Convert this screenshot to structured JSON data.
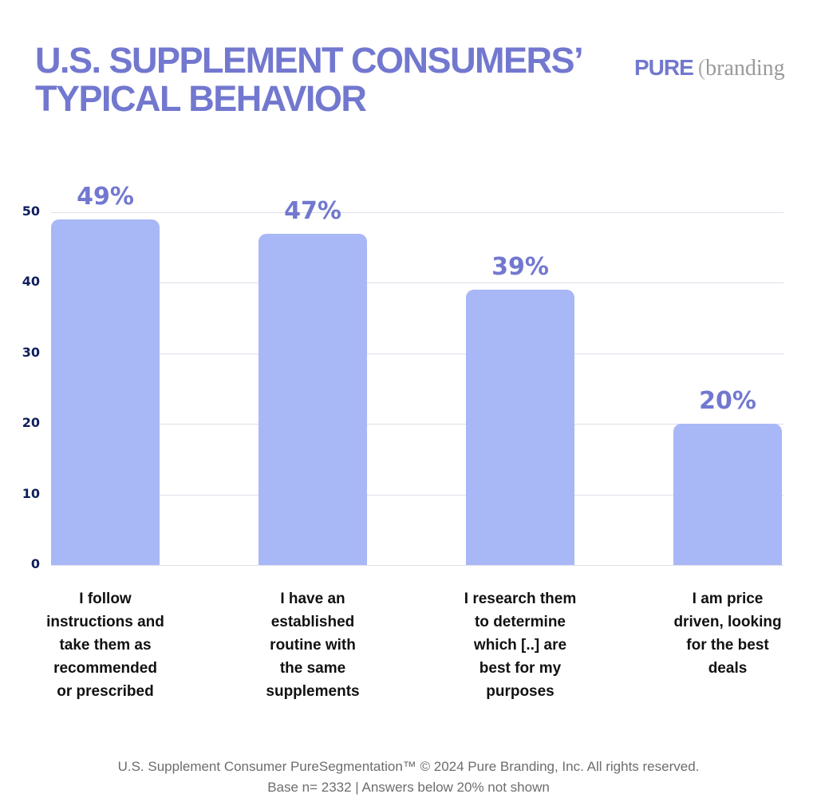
{
  "header": {
    "title_line1": "U.S. SUPPLEMENT CONSUMERS’",
    "title_line2": "TYPICAL BEHAVIOR",
    "logo_pure": "PURE",
    "logo_paren": "(",
    "logo_branding": "branding"
  },
  "footer": {
    "line1": "U.S. Supplement Consumer PureSegmentation™ © 2024 Pure Branding, Inc. All rights reserved.",
    "line2": "Base n= 2332 | Answers below 20% not shown"
  },
  "colors": {
    "accent": "#7278cf",
    "bar": "#a8b7f6",
    "axis_text": "#0f1f5c",
    "grid": "#dcdfe8"
  },
  "chart_data": {
    "type": "bar",
    "title": "U.S. SUPPLEMENT CONSUMERS’ TYPICAL BEHAVIOR",
    "xlabel": "",
    "ylabel": "",
    "ylim": [
      0,
      50
    ],
    "yticks": [
      0,
      10,
      20,
      30,
      40,
      50
    ],
    "ytick_labels": [
      "0",
      "10",
      "20",
      "30",
      "40",
      "50"
    ],
    "grid": true,
    "legend": null,
    "categories": [
      "I follow instructions and take them as recommended or prescribed",
      "I have an established routine with the same supplements",
      "I research them to determine which [..] are best for my purposes",
      "I am price driven, looking for the best deals"
    ],
    "category_labels_wrapped": [
      "I follow\ninstructions and\ntake them as\nrecommended\nor prescribed",
      "I have an\nestablished\nroutine with\nthe same\nsupplements",
      "I research them\nto determine\nwhich [..] are\nbest for my\npurposes",
      "I am price\ndriven, looking\nfor the best\ndeals"
    ],
    "values": [
      49,
      47,
      39,
      20
    ],
    "data_labels": [
      "49%",
      "47%",
      "39%",
      "20%"
    ],
    "annotations": [
      "Base n= 2332",
      "Answers below 20% not shown"
    ]
  }
}
